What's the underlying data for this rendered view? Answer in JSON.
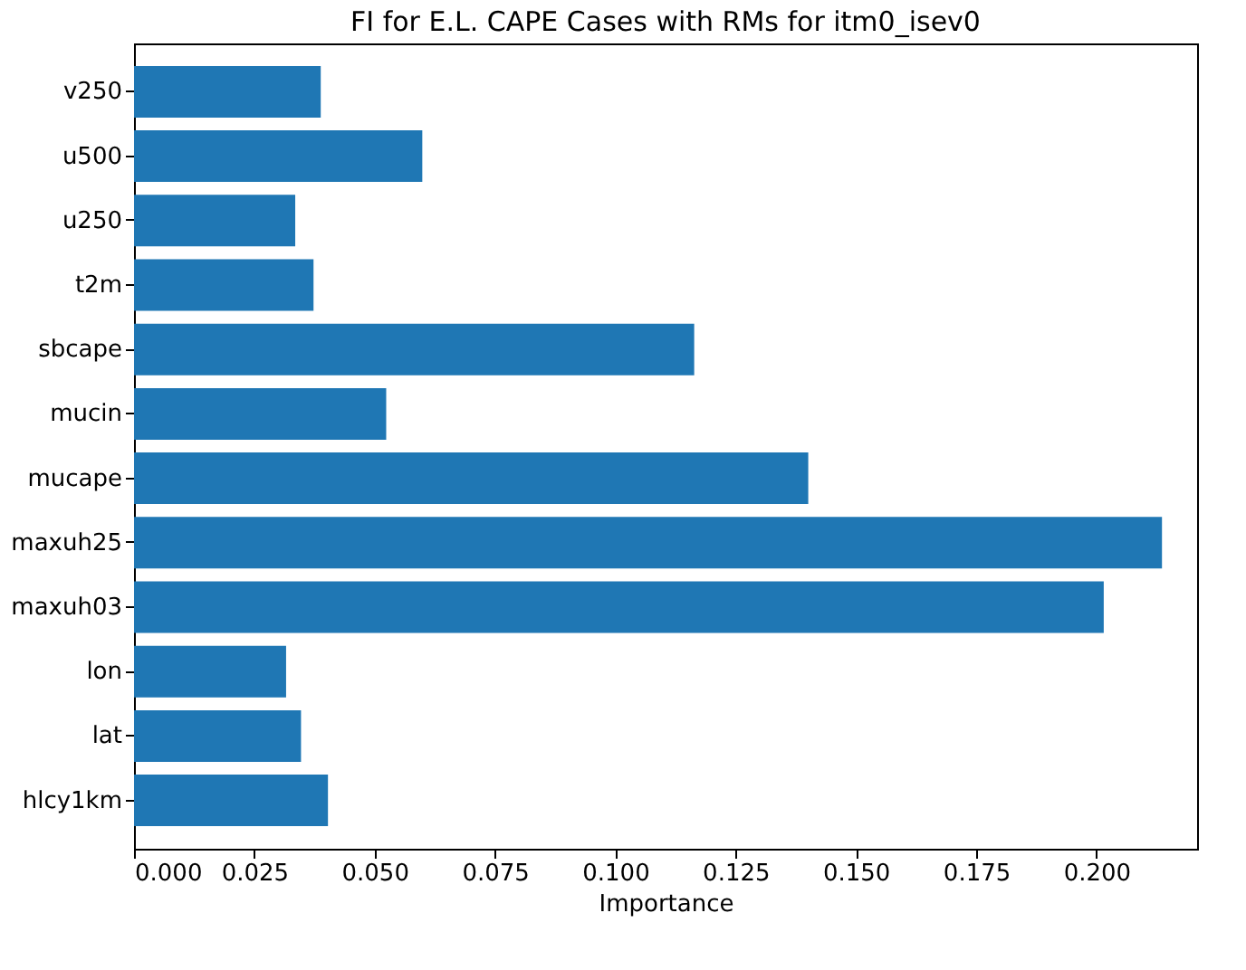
{
  "chart_data": {
    "type": "bar",
    "orientation": "horizontal",
    "title": "FI for E.L. CAPE Cases with RMs for itm0_isev0",
    "xlabel": "Importance",
    "categories": [
      "v250",
      "u500",
      "u250",
      "t2m",
      "sbcape",
      "mucin",
      "mucape",
      "maxuh25",
      "maxuh03",
      "lon",
      "lat",
      "hlcy1km"
    ],
    "values": [
      0.0388,
      0.0599,
      0.0335,
      0.0373,
      0.1164,
      0.0524,
      0.1401,
      0.2136,
      0.2015,
      0.0316,
      0.0347,
      0.0403
    ],
    "color": "#1f77b4",
    "xlim": [
      0,
      0.2209
    ],
    "xticks": [
      {
        "value": 0,
        "label": "0.000"
      },
      {
        "value": 0.025,
        "label": "0.025"
      },
      {
        "value": 0.05,
        "label": "0.050"
      },
      {
        "value": 0.075,
        "label": "0.075"
      },
      {
        "value": 0.1,
        "label": "0.100"
      },
      {
        "value": 0.125,
        "label": "0.125"
      },
      {
        "value": 0.15,
        "label": "0.150"
      },
      {
        "value": 0.175,
        "label": "0.175"
      },
      {
        "value": 0.2,
        "label": "0.200"
      }
    ],
    "grid": false
  }
}
